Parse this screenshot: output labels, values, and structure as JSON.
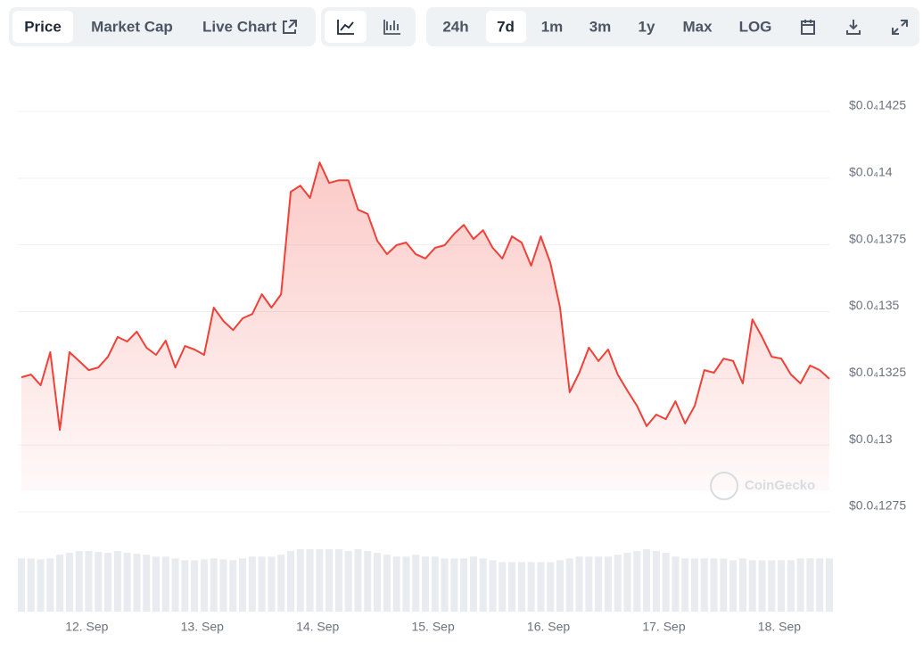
{
  "toolbar": {
    "views": [
      "Price",
      "Market Cap",
      "Live Chart"
    ],
    "ranges": [
      "24h",
      "7d",
      "1m",
      "3m",
      "1y",
      "Max",
      "LOG"
    ]
  },
  "watermark": "CoinGecko",
  "chart_data": {
    "type": "line",
    "series": [
      {
        "name": "Price",
        "color": "#ef4137",
        "values": [
          1.3254e-05,
          1.3264e-05,
          1.3224e-05,
          1.3348e-05,
          1.3057e-05,
          1.3348e-05,
          1.3315e-05,
          1.3281e-05,
          1.3291e-05,
          1.3331e-05,
          1.3405e-05,
          1.3388e-05,
          1.3425e-05,
          1.3365e-05,
          1.3338e-05,
          1.3391e-05,
          1.3291e-05,
          1.3371e-05,
          1.3358e-05,
          1.3338e-05,
          1.3515e-05,
          1.3465e-05,
          1.3431e-05,
          1.3475e-05,
          1.3491e-05,
          1.3565e-05,
          1.3515e-05,
          1.3565e-05,
          1.3949e-05,
          1.3972e-05,
          1.3926e-05,
          1.4059e-05,
          1.3982e-05,
          1.3992e-05,
          1.3992e-05,
          1.3882e-05,
          1.3866e-05,
          1.3765e-05,
          1.3715e-05,
          1.3749e-05,
          1.3759e-05,
          1.3715e-05,
          1.3699e-05,
          1.3739e-05,
          1.3749e-05,
          1.3792e-05,
          1.3825e-05,
          1.3772e-05,
          1.3805e-05,
          1.3739e-05,
          1.3699e-05,
          1.3782e-05,
          1.3759e-05,
          1.3672e-05,
          1.3782e-05,
          1.3682e-05,
          1.3515e-05,
          1.3198e-05,
          1.3271e-05,
          1.3365e-05,
          1.3315e-05,
          1.3358e-05,
          1.3264e-05,
          1.3204e-05,
          1.3147e-05,
          1.3071e-05,
          1.3114e-05,
          1.3097e-05,
          1.3164e-05,
          1.3081e-05,
          1.3147e-05,
          1.3281e-05,
          1.3271e-05,
          1.3324e-05,
          1.3315e-05,
          1.3231e-05,
          1.3471e-05,
          1.3405e-05,
          1.3331e-05,
          1.3324e-05,
          1.3264e-05,
          1.3231e-05,
          1.3298e-05,
          1.3281e-05,
          1.3248e-05
        ]
      }
    ],
    "volume": {
      "values": [
        58,
        58,
        57,
        58,
        62,
        64,
        66,
        66,
        65,
        64,
        66,
        64,
        63,
        62,
        60,
        60,
        58,
        56,
        56,
        57,
        58,
        57,
        56,
        58,
        60,
        60,
        60,
        62,
        66,
        68,
        68,
        68,
        68,
        68,
        66,
        68,
        66,
        64,
        62,
        60,
        60,
        62,
        60,
        60,
        58,
        58,
        58,
        60,
        58,
        56,
        54,
        54,
        54,
        54,
        54,
        54,
        56,
        58,
        60,
        60,
        60,
        60,
        62,
        64,
        66,
        68,
        66,
        64,
        60,
        58,
        58,
        58,
        58,
        58,
        56,
        58,
        56,
        56,
        56,
        56,
        56,
        58,
        58,
        58,
        58
      ]
    },
    "xlim": [
      0,
      84
    ],
    "xticks": [
      {
        "value": 6.8,
        "label": "12. Sep"
      },
      {
        "value": 18.8,
        "label": "13. Sep"
      },
      {
        "value": 30.8,
        "label": "14. Sep"
      },
      {
        "value": 42.8,
        "label": "15. Sep"
      },
      {
        "value": 54.8,
        "label": "16. Sep"
      },
      {
        "value": 66.8,
        "label": "17. Sep"
      },
      {
        "value": 78.8,
        "label": "18. Sep"
      }
    ],
    "ylim": [
      1.275e-05,
      1.425e-05
    ],
    "yticks": [
      {
        "value": 1.425e-05,
        "label": "$0.0₄1425"
      },
      {
        "value": 1.4e-05,
        "label": "$0.0₄14"
      },
      {
        "value": 1.375e-05,
        "label": "$0.0₄1375"
      },
      {
        "value": 1.35e-05,
        "label": "$0.0₄135"
      },
      {
        "value": 1.325e-05,
        "label": "$0.0₄1325"
      },
      {
        "value": 1.3e-05,
        "label": "$0.0₄13"
      },
      {
        "value": 1.275e-05,
        "label": "$0.0₄1275"
      }
    ],
    "grid": true
  }
}
